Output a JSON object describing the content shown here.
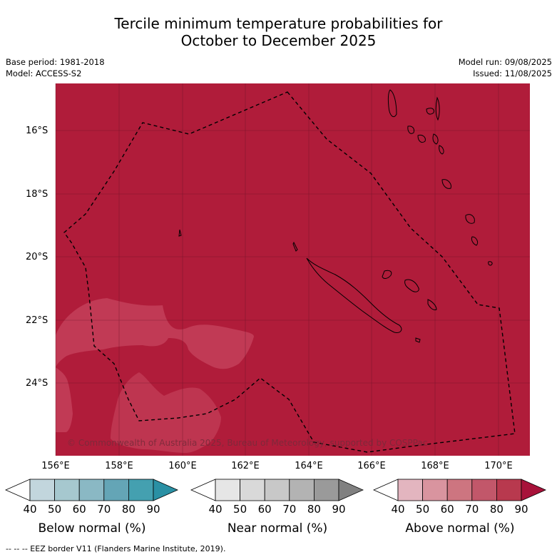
{
  "title_line1": "Tercile minimum temperature probabilities for",
  "title_line2": "October to December 2025",
  "meta": {
    "base_period": "Base period: 1981-2018",
    "model": "Model: ACCESS-S2",
    "model_run": "Model run: 09/08/2025",
    "issued": "Issued: 11/08/2025"
  },
  "map": {
    "extent": {
      "lon_min": 155.6,
      "lon_max": 171.0,
      "lat_min": -26.4,
      "lat_max": -14.5
    },
    "lat_labels": [
      "16°S",
      "18°S",
      "20°S",
      "22°S",
      "24°S"
    ],
    "lon_labels": [
      "156°E",
      "158°E",
      "160°E",
      "162°E",
      "164°E",
      "166°E",
      "168°E",
      "170°E"
    ],
    "fill_category": "Above normal",
    "fill_color": "#b01c3a",
    "lighter_patch_color": "#c13a55",
    "credit": "© Commonwealth of Australia 2025, Bureau of Meteorology, supported by COSPPac"
  },
  "colorbars": [
    {
      "label": "Below normal (%)",
      "ticks": [
        "40",
        "50",
        "60",
        "70",
        "80",
        "90"
      ],
      "colors": [
        "#ffffff",
        "#c2d6dd",
        "#a6c8cf",
        "#8ab8c4",
        "#64a5b6",
        "#44a0b0",
        "#2a90a4"
      ]
    },
    {
      "label": "Near normal (%)",
      "ticks": [
        "40",
        "50",
        "60",
        "70",
        "80",
        "90"
      ],
      "colors": [
        "#ffffff",
        "#e6e6e6",
        "#d9d9d9",
        "#c8c8c8",
        "#b3b3b3",
        "#9a9a9a",
        "#808080"
      ]
    },
    {
      "label": "Above normal (%)",
      "ticks": [
        "40",
        "50",
        "60",
        "70",
        "80",
        "90"
      ],
      "colors": [
        "#ffffff",
        "#e3b5bf",
        "#d9949f",
        "#cd7580",
        "#c2576a",
        "#b8394e",
        "#a8123a"
      ]
    }
  ],
  "footer": "--  --  -- EEZ border V11 (Flanders Marine Institute, 2019)."
}
